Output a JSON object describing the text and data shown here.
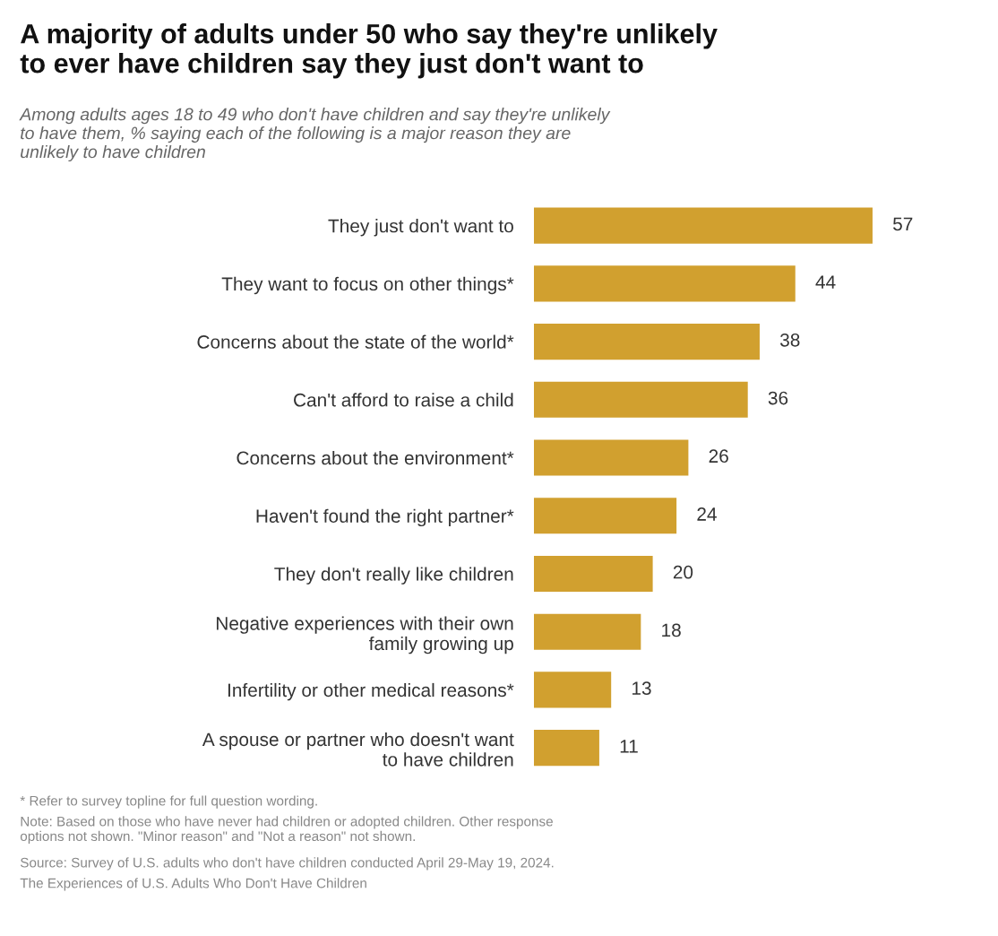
{
  "chart_data": {
    "type": "bar",
    "orientation": "horizontal",
    "title": "A majority of adults under 50 who say they're unlikely\nto ever have children say they just don't want to",
    "subtitle": "Among adults ages 18 to 49 who don't have children and say they're unlikely\nto have them, % saying each of the following is a major reason they are\nunlikely to have children",
    "categories": [
      "They just don't want to",
      "They want to focus on other things*",
      "Concerns about the state of the world*",
      "Can't afford to raise a child",
      "Concerns about the environment*",
      "Haven't found the right partner*",
      "They don't really like children",
      "Negative experiences with their own\nfamily growing up",
      "Infertility or other medical reasons*",
      "A spouse or partner who doesn't want\nto have children"
    ],
    "values": [
      57,
      44,
      38,
      36,
      26,
      24,
      20,
      18,
      13,
      11
    ],
    "color": "#d1a02f",
    "data_labels": true,
    "grid": false,
    "legend": false,
    "annotations": [
      "* Refer to survey topline for full question wording.",
      "Note: Based on those who have never had children or adopted children. Other response\noptions not shown. \"Minor reason\" and \"Not a reason\" not shown.",
      "Source: Survey of U.S. adults who don't have children conducted April 29-May 19, 2024.",
      "The Experiences of U.S. Adults Who Don't Have Children"
    ]
  }
}
